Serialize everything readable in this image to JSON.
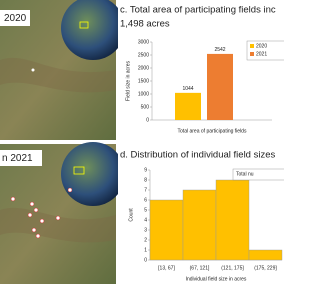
{
  "maps": [
    {
      "label": "2020"
    },
    {
      "label": "n 2021"
    }
  ],
  "chart_data": [
    {
      "type": "bar",
      "title": "c. Total area of participating fields inc",
      "subtitle": "1,498 acres",
      "y_label": "Field size in acres",
      "x_label": "Total area of participating fields",
      "series": [
        {
          "name": "2020",
          "color": "#ffc000",
          "values": [
            1044
          ]
        },
        {
          "name": "2021",
          "color": "#ed7d31",
          "values": [
            2542
          ]
        }
      ],
      "ylim": [
        0,
        3000
      ],
      "yticks": [
        0,
        500,
        1000,
        1500,
        2000,
        2500,
        3000
      ],
      "grid": false,
      "legend": "upper right",
      "data_labels": true
    },
    {
      "type": "bar",
      "title": "d. Distribution of individual field sizes",
      "y_label": "Count",
      "x_label": "Individual field size in acres",
      "categories": [
        "[13, 67]",
        "(67, 121]",
        "(121, 175]",
        "(175, 229]"
      ],
      "series": [
        {
          "name": "Total nu",
          "color": "#ffc000",
          "values": [
            6,
            7,
            8,
            1
          ]
        }
      ],
      "ylim": [
        0,
        9
      ],
      "yticks": [
        0,
        1,
        2,
        3,
        4,
        5,
        6,
        7,
        8,
        9
      ],
      "grid": false,
      "legend": "upper right",
      "data_labels": false
    }
  ]
}
